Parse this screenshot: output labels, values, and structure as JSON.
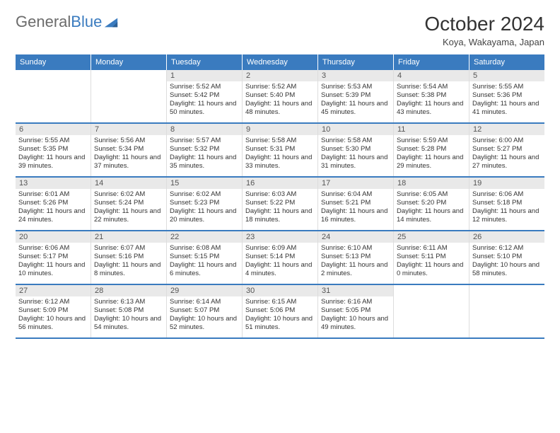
{
  "brand": {
    "part1": "General",
    "part2": "Blue"
  },
  "title": "October 2024",
  "location": "Koya, Wakayama, Japan",
  "colors": {
    "accent": "#3a7bbf",
    "dateBg": "#e9e9e9",
    "text": "#333333",
    "logoGray": "#6b6b6b"
  },
  "dayHeaders": [
    "Sunday",
    "Monday",
    "Tuesday",
    "Wednesday",
    "Thursday",
    "Friday",
    "Saturday"
  ],
  "weeks": [
    [
      null,
      null,
      {
        "d": "1",
        "sr": "5:52 AM",
        "ss": "5:42 PM",
        "dl": "11 hours and 50 minutes."
      },
      {
        "d": "2",
        "sr": "5:52 AM",
        "ss": "5:40 PM",
        "dl": "11 hours and 48 minutes."
      },
      {
        "d": "3",
        "sr": "5:53 AM",
        "ss": "5:39 PM",
        "dl": "11 hours and 45 minutes."
      },
      {
        "d": "4",
        "sr": "5:54 AM",
        "ss": "5:38 PM",
        "dl": "11 hours and 43 minutes."
      },
      {
        "d": "5",
        "sr": "5:55 AM",
        "ss": "5:36 PM",
        "dl": "11 hours and 41 minutes."
      }
    ],
    [
      {
        "d": "6",
        "sr": "5:55 AM",
        "ss": "5:35 PM",
        "dl": "11 hours and 39 minutes."
      },
      {
        "d": "7",
        "sr": "5:56 AM",
        "ss": "5:34 PM",
        "dl": "11 hours and 37 minutes."
      },
      {
        "d": "8",
        "sr": "5:57 AM",
        "ss": "5:32 PM",
        "dl": "11 hours and 35 minutes."
      },
      {
        "d": "9",
        "sr": "5:58 AM",
        "ss": "5:31 PM",
        "dl": "11 hours and 33 minutes."
      },
      {
        "d": "10",
        "sr": "5:58 AM",
        "ss": "5:30 PM",
        "dl": "11 hours and 31 minutes."
      },
      {
        "d": "11",
        "sr": "5:59 AM",
        "ss": "5:28 PM",
        "dl": "11 hours and 29 minutes."
      },
      {
        "d": "12",
        "sr": "6:00 AM",
        "ss": "5:27 PM",
        "dl": "11 hours and 27 minutes."
      }
    ],
    [
      {
        "d": "13",
        "sr": "6:01 AM",
        "ss": "5:26 PM",
        "dl": "11 hours and 24 minutes."
      },
      {
        "d": "14",
        "sr": "6:02 AM",
        "ss": "5:24 PM",
        "dl": "11 hours and 22 minutes."
      },
      {
        "d": "15",
        "sr": "6:02 AM",
        "ss": "5:23 PM",
        "dl": "11 hours and 20 minutes."
      },
      {
        "d": "16",
        "sr": "6:03 AM",
        "ss": "5:22 PM",
        "dl": "11 hours and 18 minutes."
      },
      {
        "d": "17",
        "sr": "6:04 AM",
        "ss": "5:21 PM",
        "dl": "11 hours and 16 minutes."
      },
      {
        "d": "18",
        "sr": "6:05 AM",
        "ss": "5:20 PM",
        "dl": "11 hours and 14 minutes."
      },
      {
        "d": "19",
        "sr": "6:06 AM",
        "ss": "5:18 PM",
        "dl": "11 hours and 12 minutes."
      }
    ],
    [
      {
        "d": "20",
        "sr": "6:06 AM",
        "ss": "5:17 PM",
        "dl": "11 hours and 10 minutes."
      },
      {
        "d": "21",
        "sr": "6:07 AM",
        "ss": "5:16 PM",
        "dl": "11 hours and 8 minutes."
      },
      {
        "d": "22",
        "sr": "6:08 AM",
        "ss": "5:15 PM",
        "dl": "11 hours and 6 minutes."
      },
      {
        "d": "23",
        "sr": "6:09 AM",
        "ss": "5:14 PM",
        "dl": "11 hours and 4 minutes."
      },
      {
        "d": "24",
        "sr": "6:10 AM",
        "ss": "5:13 PM",
        "dl": "11 hours and 2 minutes."
      },
      {
        "d": "25",
        "sr": "6:11 AM",
        "ss": "5:11 PM",
        "dl": "11 hours and 0 minutes."
      },
      {
        "d": "26",
        "sr": "6:12 AM",
        "ss": "5:10 PM",
        "dl": "10 hours and 58 minutes."
      }
    ],
    [
      {
        "d": "27",
        "sr": "6:12 AM",
        "ss": "5:09 PM",
        "dl": "10 hours and 56 minutes."
      },
      {
        "d": "28",
        "sr": "6:13 AM",
        "ss": "5:08 PM",
        "dl": "10 hours and 54 minutes."
      },
      {
        "d": "29",
        "sr": "6:14 AM",
        "ss": "5:07 PM",
        "dl": "10 hours and 52 minutes."
      },
      {
        "d": "30",
        "sr": "6:15 AM",
        "ss": "5:06 PM",
        "dl": "10 hours and 51 minutes."
      },
      {
        "d": "31",
        "sr": "6:16 AM",
        "ss": "5:05 PM",
        "dl": "10 hours and 49 minutes."
      },
      null,
      null
    ]
  ],
  "labels": {
    "sunrise": "Sunrise: ",
    "sunset": "Sunset: ",
    "daylight": "Daylight: "
  }
}
